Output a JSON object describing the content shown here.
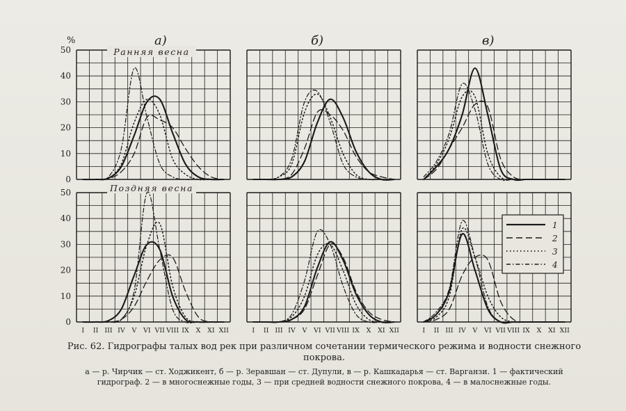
{
  "figure": {
    "percent_label": "%",
    "caption_title": "Рис. 62. Гидрографы талых вод рек при различном сочетании термического режима и водности снежного покрова.",
    "caption_legend": "а — р. Чирчик — ст. Ходжикент, б — р. Зеравшан — ст. Дупули, в — р. Кашкадарья — ст. Варганзи. 1 — фактический гидрограф. 2 — в многоснежные годы, 3 — при средней водности снежного покрова, 4 — в малоснежные годы.",
    "column_labels": [
      "а)",
      "б)",
      "в)"
    ],
    "row_labels": [
      "Ранняя весна",
      "Поздняя весна"
    ],
    "y_ticks": [
      "0",
      "10",
      "20",
      "30",
      "40",
      "50"
    ],
    "month_ticks": [
      "I",
      "II",
      "III",
      "IV",
      "V",
      "VI",
      "VII",
      "VIII",
      "IX",
      "X",
      "XI",
      "XII"
    ],
    "legend_items": [
      "1",
      "2",
      "3",
      "4"
    ],
    "ink_color": "#1a1a1a",
    "paper_color": "#e8e6df"
  },
  "chart_data": [
    {
      "type": "line",
      "panel": "а) Ранняя весна",
      "x": [
        1,
        2,
        3,
        4,
        5,
        6,
        7,
        8,
        9,
        10,
        11,
        12
      ],
      "ylim": [
        0,
        50
      ],
      "series": [
        {
          "name": "1",
          "values": [
            0,
            0,
            0.5,
            5,
            17,
            30,
            31,
            18,
            6,
            1,
            0,
            0
          ]
        },
        {
          "name": "2",
          "values": [
            0,
            0,
            0.3,
            3,
            10,
            24,
            23,
            20,
            12,
            5,
            1,
            0
          ]
        },
        {
          "name": "3",
          "values": [
            0,
            0,
            0.5,
            6,
            22,
            31,
            25,
            8,
            2,
            0,
            0,
            0
          ]
        },
        {
          "name": "4",
          "values": [
            0,
            0,
            1,
            12,
            43,
            24,
            6,
            1,
            0,
            0,
            0,
            0
          ]
        }
      ]
    },
    {
      "type": "line",
      "panel": "б) Ранняя весна",
      "x": [
        1,
        2,
        3,
        4,
        5,
        6,
        7,
        8,
        9,
        10,
        11,
        12
      ],
      "ylim": [
        0,
        50
      ],
      "series": [
        {
          "name": "1",
          "values": [
            0,
            0,
            0,
            1,
            7,
            22,
            31,
            24,
            11,
            3,
            0,
            0
          ]
        },
        {
          "name": "2",
          "values": [
            0,
            0,
            0,
            2,
            12,
            26,
            25,
            19,
            9,
            3,
            1,
            0
          ]
        },
        {
          "name": "3",
          "values": [
            0,
            0,
            1,
            6,
            26,
            33,
            24,
            10,
            2,
            0,
            0,
            0
          ]
        },
        {
          "name": "4",
          "values": [
            0,
            0,
            1,
            8,
            30,
            34,
            22,
            6,
            1,
            0,
            0,
            0
          ]
        }
      ]
    },
    {
      "type": "line",
      "panel": "в) Ранняя весна",
      "x": [
        1,
        2,
        3,
        4,
        5,
        6,
        7,
        8,
        9,
        10,
        11,
        12
      ],
      "ylim": [
        0,
        50
      ],
      "series": [
        {
          "name": "1",
          "values": [
            0,
            5,
            12,
            25,
            43,
            25,
            4,
            0,
            0,
            0,
            0,
            0
          ]
        },
        {
          "name": "2",
          "values": [
            0,
            4,
            12,
            20,
            29,
            28,
            8,
            1,
            0,
            0,
            0,
            0
          ]
        },
        {
          "name": "3",
          "values": [
            0,
            6,
            16,
            32,
            32,
            10,
            1,
            0,
            0,
            0,
            0,
            0
          ]
        },
        {
          "name": "4",
          "values": [
            1,
            7,
            18,
            37,
            27,
            6,
            0,
            0,
            0,
            0,
            0,
            0
          ]
        }
      ]
    },
    {
      "type": "line",
      "panel": "а) Поздняя весна",
      "x": [
        1,
        2,
        3,
        4,
        5,
        6,
        7,
        8,
        9,
        10,
        11,
        12
      ],
      "ylim": [
        0,
        50
      ],
      "series": [
        {
          "name": "1",
          "values": [
            0,
            0,
            0.5,
            5,
            18,
            30,
            28,
            10,
            1,
            0,
            0,
            0
          ]
        },
        {
          "name": "2",
          "values": [
            0,
            0,
            0,
            1,
            6,
            16,
            24,
            25,
            12,
            2,
            0,
            0
          ]
        },
        {
          "name": "3",
          "values": [
            0,
            0,
            0,
            1,
            10,
            30,
            38,
            14,
            2,
            0,
            0,
            0
          ]
        },
        {
          "name": "4",
          "values": [
            0,
            0,
            0,
            1,
            12,
            50,
            28,
            5,
            0,
            0,
            0,
            0
          ]
        }
      ]
    },
    {
      "type": "line",
      "panel": "б) Поздняя весна",
      "x": [
        1,
        2,
        3,
        4,
        5,
        6,
        7,
        8,
        9,
        10,
        11,
        12
      ],
      "ylim": [
        0,
        50
      ],
      "series": [
        {
          "name": "1",
          "values": [
            0,
            0,
            0,
            1,
            6,
            21,
            31,
            24,
            11,
            3,
            0,
            0
          ]
        },
        {
          "name": "2",
          "values": [
            0,
            0,
            0,
            1,
            5,
            18,
            30,
            25,
            12,
            4,
            1,
            0
          ]
        },
        {
          "name": "3",
          "values": [
            0,
            0,
            0,
            2,
            10,
            26,
            30,
            20,
            7,
            1,
            0,
            0
          ]
        },
        {
          "name": "4",
          "values": [
            0,
            0,
            0,
            3,
            16,
            35,
            30,
            14,
            3,
            0,
            0,
            0
          ]
        }
      ]
    },
    {
      "type": "line",
      "panel": "в) Поздняя весна",
      "x": [
        1,
        2,
        3,
        4,
        5,
        6,
        7,
        8,
        9,
        10,
        11,
        12
      ],
      "ylim": [
        0,
        50
      ],
      "series": [
        {
          "name": "1",
          "values": [
            0,
            3,
            12,
            34,
            20,
            5,
            0,
            0,
            0,
            0,
            0,
            0
          ]
        },
        {
          "name": "2",
          "values": [
            0,
            1,
            5,
            18,
            25,
            24,
            8,
            1,
            0,
            0,
            0,
            0
          ]
        },
        {
          "name": "3",
          "values": [
            0,
            2,
            10,
            36,
            25,
            10,
            2,
            0,
            0,
            0,
            0,
            0
          ]
        },
        {
          "name": "4",
          "values": [
            0,
            4,
            13,
            39,
            25,
            6,
            0,
            0,
            0,
            0,
            0,
            0
          ]
        }
      ]
    }
  ]
}
